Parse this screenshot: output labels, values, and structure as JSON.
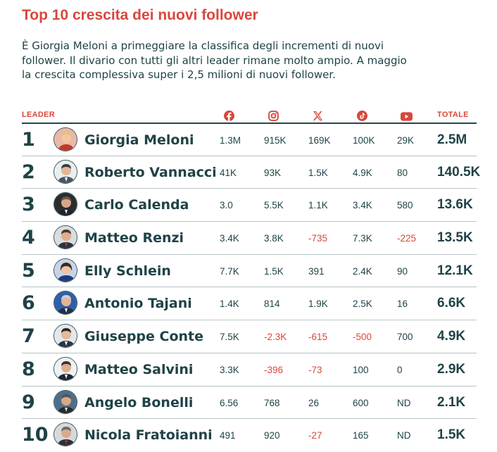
{
  "title": "Top 10 crescita dei nuovi follower",
  "description": "È Giorgia Meloni a primeggiare la classifica degli incrementi di nuovi follower. Il divario con tutti gli altri leader rimane molto ampio. A maggio la crescita complessiva super i 2,5 milioni di nuovi follower.",
  "headers": {
    "leader": "LEADER",
    "total": "TOTALE"
  },
  "icons": [
    "facebook-icon",
    "instagram-icon",
    "x-icon",
    "tiktok-icon",
    "youtube-icon"
  ],
  "colors": {
    "accent": "#d9473d",
    "text": "#1f4347",
    "negative": "#d9473d"
  },
  "rows": [
    {
      "rank": "1",
      "name": "Giorgia Meloni",
      "facebook": "1.3M",
      "instagram": "915K",
      "x": "169K",
      "tiktok": "100K",
      "youtube": "29K",
      "total": "2.5M"
    },
    {
      "rank": "2",
      "name": "Roberto Vannacci",
      "facebook": "41K",
      "instagram": "93K",
      "x": "1.5K",
      "tiktok": "4.9K",
      "youtube": "80",
      "total": "140.5K"
    },
    {
      "rank": "3",
      "name": "Carlo Calenda",
      "facebook": "3.0",
      "instagram": "5.5K",
      "x": "1.1K",
      "tiktok": "3.4K",
      "youtube": "580",
      "total": "13.6K"
    },
    {
      "rank": "4",
      "name": "Matteo Renzi",
      "facebook": "3.4K",
      "instagram": "3.8K",
      "x": "-735",
      "tiktok": "7.3K",
      "youtube": "-225",
      "total": "13.5K"
    },
    {
      "rank": "5",
      "name": "Elly Schlein",
      "facebook": "7.7K",
      "instagram": "1.5K",
      "x": "391",
      "tiktok": "2.4K",
      "youtube": "90",
      "total": "12.1K"
    },
    {
      "rank": "6",
      "name": "Antonio Tajani",
      "facebook": "1.4K",
      "instagram": "814",
      "x": "1.9K",
      "tiktok": "2.5K",
      "youtube": "16",
      "total": "6.6K"
    },
    {
      "rank": "7",
      "name": "Giuseppe Conte",
      "facebook": "7.5K",
      "instagram": "-2.3K",
      "x": "-615",
      "tiktok": "-500",
      "youtube": "700",
      "total": "4.9K"
    },
    {
      "rank": "8",
      "name": "Matteo Salvini",
      "facebook": "3.3K",
      "instagram": "-396",
      "x": "-73",
      "tiktok": "100",
      "youtube": "0",
      "total": "2.9K"
    },
    {
      "rank": "9",
      "name": "Angelo Bonelli",
      "facebook": "6.56",
      "instagram": "768",
      "x": "26",
      "tiktok": "600",
      "youtube": "ND",
      "total": "2.1K"
    },
    {
      "rank": "10",
      "name": "Nicola Fratoianni",
      "facebook": "491",
      "instagram": "920",
      "x": "-27",
      "tiktok": "165",
      "youtube": "ND",
      "total": "1.5K"
    }
  ]
}
